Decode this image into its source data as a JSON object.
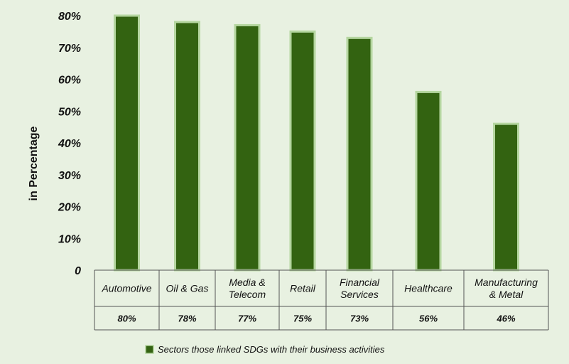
{
  "chart_data": {
    "type": "bar",
    "ylabel": "in Percentage",
    "ylim": [
      0,
      80
    ],
    "yticks": [
      "0",
      "10%",
      "20%",
      "30%",
      "40%",
      "50%",
      "60%",
      "70%",
      "80%"
    ],
    "categories": [
      [
        "Automotive"
      ],
      [
        "Oil & Gas"
      ],
      [
        "Media &",
        "Telecom"
      ],
      [
        "Retail"
      ],
      [
        "Financial",
        "Services"
      ],
      [
        "Healthcare"
      ],
      [
        "Manufacturing",
        "& Metal"
      ]
    ],
    "series": [
      {
        "name": "Sectors those linked SDGs with their business activities",
        "values": [
          80,
          78,
          77,
          75,
          73,
          56,
          46
        ]
      }
    ],
    "value_labels": [
      "80%",
      "78%",
      "77%",
      "75%",
      "73%",
      "56%",
      "46%"
    ],
    "legend_position": "bottom",
    "grid": false
  },
  "colors": {
    "background": "#e8f1e1",
    "bar_fill": "#336311",
    "bar_border": "#b5d6a0"
  }
}
